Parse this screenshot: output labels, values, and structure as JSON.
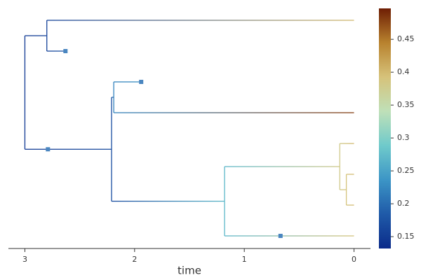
{
  "chart_data": {
    "type": "tree",
    "xlabel": "time",
    "xlim": [
      3.15,
      -0.15
    ],
    "xticks": [
      3,
      2,
      1,
      0
    ],
    "nodes": [
      {
        "time": 3.0,
        "trait": 0.15,
        "parent": null
      },
      {
        "time": 2.8,
        "trait": 0.16,
        "parent": 0
      },
      {
        "time": 0,
        "trait": 0.4,
        "parent": 1
      },
      {
        "time": 2.63,
        "trait": 0.18,
        "parent": 1
      },
      {
        "time": 2.21,
        "trait": 0.17,
        "parent": 0
      },
      {
        "time": 2.19,
        "trait": 0.22,
        "parent": 4
      },
      {
        "time": 1.94,
        "trait": 0.23,
        "parent": 5
      },
      {
        "time": 0,
        "trait": 0.48,
        "parent": 5
      },
      {
        "time": 1.18,
        "trait": 0.27,
        "parent": 4
      },
      {
        "time": 0.13,
        "trait": 0.38,
        "parent": 8
      },
      {
        "time": 0,
        "trait": 0.4,
        "parent": 9
      },
      {
        "time": 0.07,
        "trait": 0.39,
        "parent": 9
      },
      {
        "time": 0,
        "trait": 0.4,
        "parent": 11
      },
      {
        "time": 0,
        "trait": 0.4,
        "parent": 11
      },
      {
        "time": 0,
        "trait": 0.39,
        "parent": 8
      }
    ],
    "markers": [
      {
        "node": 3
      },
      {
        "node": 6
      },
      {
        "node": 4,
        "time": 2.79
      },
      {
        "node": 14,
        "time": 0.67
      }
    ],
    "marker_color": "#4a86c0",
    "colormap": [
      "#0b2b8a",
      "#1f5aa8",
      "#3c95c6",
      "#6fcacb",
      "#bfe0b8",
      "#d6c27a",
      "#b8822e",
      "#6e1e04"
    ],
    "clim": [
      0.132,
      0.497
    ],
    "cticks": [
      0.15,
      0.2,
      0.25,
      0.3,
      0.35,
      0.4,
      0.45
    ]
  }
}
